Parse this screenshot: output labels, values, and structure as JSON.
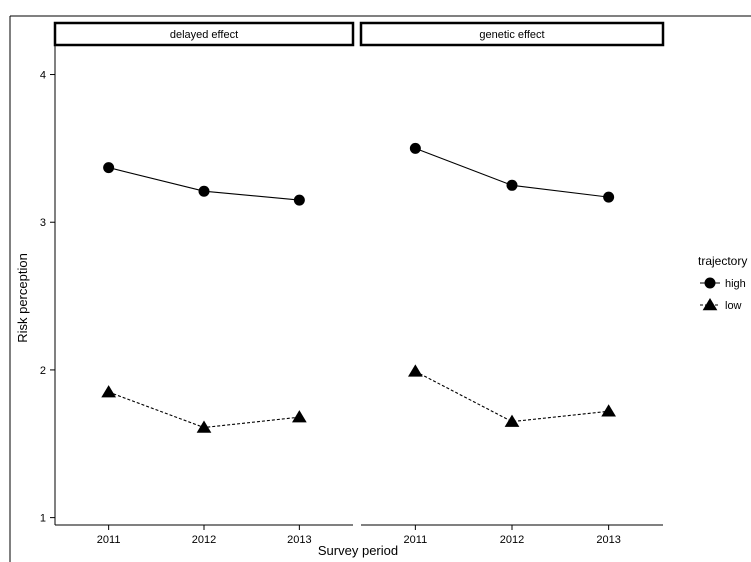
{
  "chart_data": {
    "type": "line",
    "facet_by": "effect",
    "x": [
      2011,
      2012,
      2013
    ],
    "xlabel": "Survey period",
    "ylabel": "Risk perception",
    "ylim": [
      0.95,
      4.2
    ],
    "yticks": [
      1,
      2,
      3,
      4
    ],
    "grid": false,
    "legend": {
      "title": "trajectory",
      "position": "right",
      "entries": [
        {
          "name": "high",
          "marker": "circle",
          "line": "solid"
        },
        {
          "name": "low",
          "marker": "triangle",
          "line": "dashed"
        }
      ]
    },
    "panels": [
      {
        "strip": "delayed effect",
        "series": [
          {
            "name": "high",
            "values": [
              3.37,
              3.21,
              3.15
            ]
          },
          {
            "name": "low",
            "values": [
              1.85,
              1.61,
              1.68
            ]
          }
        ]
      },
      {
        "strip": "genetic effect",
        "series": [
          {
            "name": "high",
            "values": [
              3.5,
              3.25,
              3.17
            ]
          },
          {
            "name": "low",
            "values": [
              1.99,
              1.65,
              1.72
            ]
          }
        ]
      }
    ]
  }
}
